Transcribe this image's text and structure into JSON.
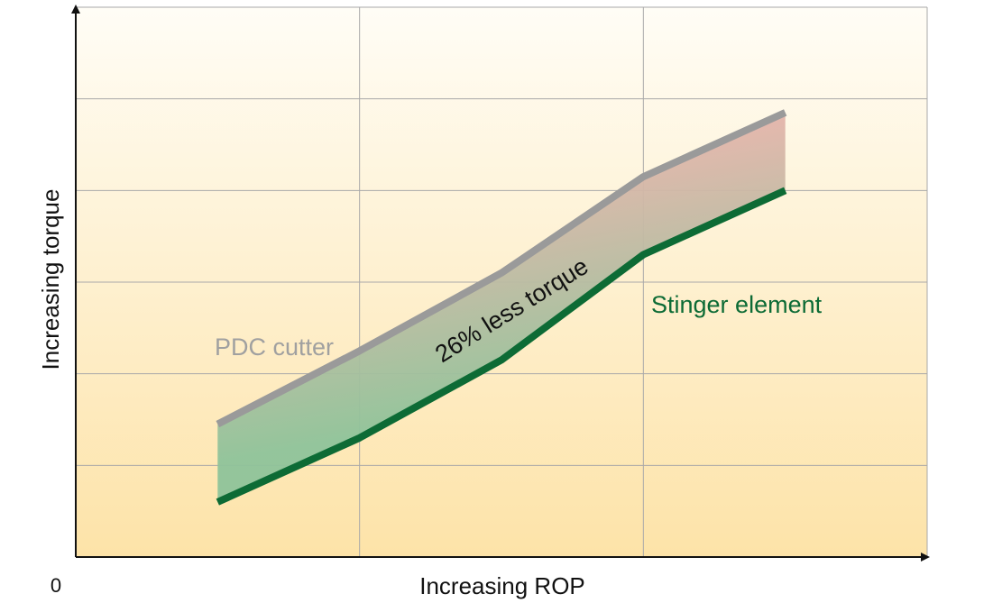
{
  "chart_data": {
    "type": "area",
    "xlabel": "Increasing ROP",
    "ylabel": "Increasing torque",
    "origin_label": "0",
    "xlim": [
      0,
      3
    ],
    "ylim": [
      0,
      6
    ],
    "grid": true,
    "series": [
      {
        "name": "PDC cutter",
        "color": "#9a9a9a",
        "x": [
          0.5,
          1.0,
          1.5,
          2.0,
          2.5,
          2.5
        ],
        "y": [
          1.45,
          2.25,
          3.1,
          4.15,
          4.85,
          5.25
        ]
      },
      {
        "name": "Stinger element",
        "color": "#0d6b35",
        "x": [
          0.5,
          1.0,
          1.5,
          2.0,
          2.5,
          2.5
        ],
        "y": [
          0.6,
          1.3,
          2.15,
          3.3,
          4.0,
          4.1
        ]
      }
    ],
    "annotation": "26% less torque",
    "colors": {
      "background_top": "#fffdf6",
      "background_bottom": "#fde3a8",
      "band_top": "#ffb0b0",
      "band_bottom": "#8fc39a",
      "grid": "#a9a9a9",
      "axis": "#111111"
    }
  }
}
